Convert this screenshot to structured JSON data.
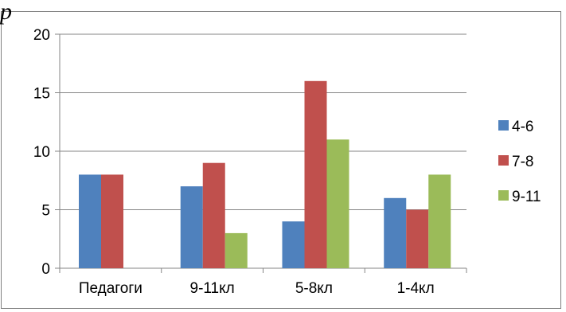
{
  "corner_mark": "p",
  "chart_data": {
    "type": "bar",
    "categories": [
      "Педагоги",
      "9-11кл",
      "5-8кл",
      "1-4кл"
    ],
    "series": [
      {
        "name": "4-6",
        "color": "#4f81bd",
        "values": [
          8,
          7,
          4,
          6
        ]
      },
      {
        "name": "7-8",
        "color": "#c0504d",
        "values": [
          8,
          9,
          16,
          5
        ]
      },
      {
        "name": "9-11",
        "color": "#9bbb59",
        "values": [
          0,
          3,
          11,
          8
        ]
      }
    ],
    "yticks": [
      "0",
      "5",
      "10",
      "15",
      "20"
    ],
    "ylim": [
      0,
      20
    ],
    "grid": true,
    "legend": "right",
    "title": "",
    "xlabel": "",
    "ylabel": ""
  }
}
